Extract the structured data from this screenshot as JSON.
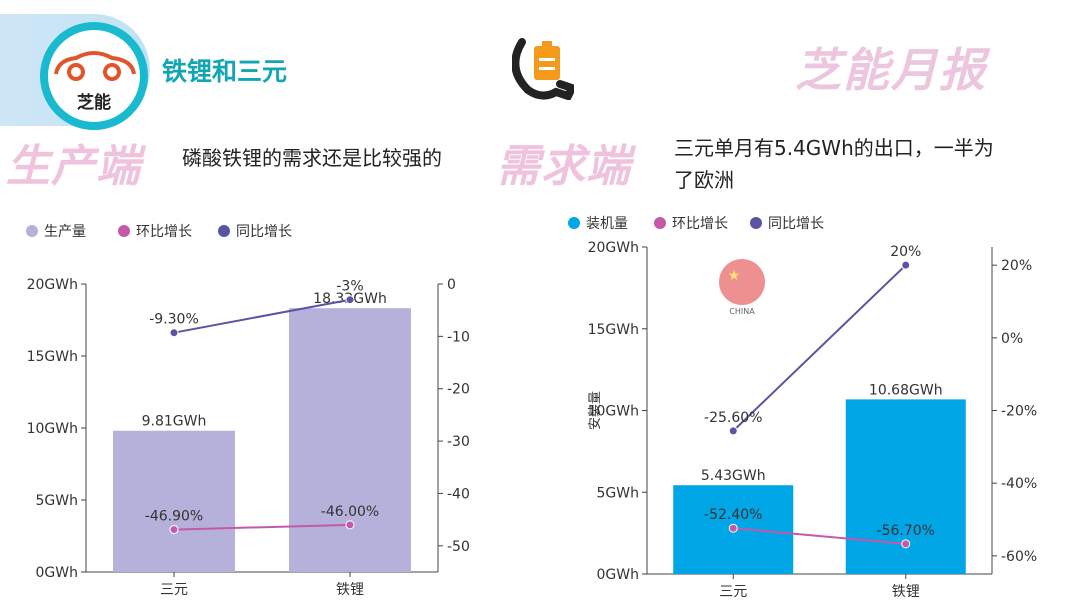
{
  "header": {
    "logo_text": "芝能",
    "title": "铁锂和三元",
    "brand": "芝能月报"
  },
  "left": {
    "section_label": "生产端",
    "section_text": "磷酸铁锂的需求还是比较强的"
  },
  "right": {
    "section_label": "需求端",
    "section_text_line1": "三元单月有5.4GWh的出口，一半为",
    "section_text_line2": "了欧洲",
    "flag_label": "CHINA"
  },
  "colors": {
    "teal": "#12a6b5",
    "bar_left": "#b5b1da",
    "bar_right": "#00a6e6",
    "line_mom": "#c359a8",
    "line_yoy": "#5a54a6"
  },
  "chart_data": [
    {
      "type": "bar",
      "legend": [
        "生产量",
        "环比增长",
        "同比增长"
      ],
      "categories": [
        "三元",
        "铁锂"
      ],
      "series": [
        {
          "name": "生产量",
          "kind": "bar",
          "axis": "left",
          "values": [
            9.81,
            18.32
          ],
          "labels": [
            "9.81GWh",
            "18.32GWh"
          ]
        },
        {
          "name": "环比增长",
          "kind": "line",
          "axis": "right",
          "values": [
            -46.9,
            -46.0
          ],
          "labels": [
            "-46.90%",
            "-46.00%"
          ]
        },
        {
          "name": "同比增长",
          "kind": "line",
          "axis": "right",
          "values": [
            -9.3,
            -3
          ],
          "labels": [
            "-9.30%",
            "-3%"
          ]
        }
      ],
      "ylim": [
        0,
        20
      ],
      "yticks": [
        0,
        5,
        10,
        15,
        20
      ],
      "ytick_labels": [
        "0GWh",
        "5GWh",
        "10GWh",
        "15GWh",
        "20GWh"
      ],
      "y2lim": [
        -55,
        0
      ],
      "y2ticks": [
        0,
        -10,
        -20,
        -30,
        -40,
        -50
      ],
      "y2tick_labels": [
        "0",
        "-10",
        "-20",
        "-30",
        "-40",
        "-50"
      ],
      "ylabel": ""
    },
    {
      "type": "bar",
      "legend": [
        "装机量",
        "环比增长",
        "同比增长"
      ],
      "categories": [
        "三元",
        "铁锂"
      ],
      "series": [
        {
          "name": "装机量",
          "kind": "bar",
          "axis": "left",
          "values": [
            5.43,
            10.68
          ],
          "labels": [
            "5.43GWh",
            "10.68GWh"
          ]
        },
        {
          "name": "环比增长",
          "kind": "line",
          "axis": "right",
          "values": [
            -52.4,
            -56.7
          ],
          "labels": [
            "-52.40%",
            "-56.70%"
          ]
        },
        {
          "name": "同比增长",
          "kind": "line",
          "axis": "right",
          "values": [
            -25.6,
            20
          ],
          "labels": [
            "-25.60%",
            "20%"
          ]
        }
      ],
      "ylim": [
        0,
        20
      ],
      "yticks": [
        0,
        5,
        10,
        15,
        20
      ],
      "ytick_labels": [
        "0GWh",
        "5GWh",
        "10GWh",
        "15GWh",
        "20GWh"
      ],
      "y2lim": [
        -65,
        25
      ],
      "y2ticks": [
        20,
        0,
        -20,
        -40,
        -60
      ],
      "y2tick_labels": [
        "20%",
        "0%",
        "-20%",
        "-40%",
        "-60%"
      ],
      "ylabel": "安装量"
    }
  ]
}
